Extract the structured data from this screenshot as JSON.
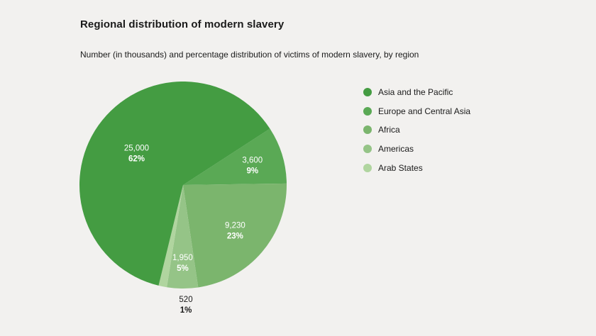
{
  "title": "Regional distribution of modern slavery",
  "subtitle": "Number (in thousands) and percentage distribution of victims of modern slavery, by region",
  "chart_data": {
    "type": "pie",
    "title": "Regional distribution of modern slavery",
    "subtitle": "Number (in thousands) and percentage distribution of victims of modern slavery, by region",
    "legend_position": "right",
    "slices": [
      {
        "name": "Asia and the Pacific",
        "value": 25000,
        "value_label": "25,000",
        "percent_label": "62%",
        "color": "#449c42"
      },
      {
        "name": "Europe and Central Asia",
        "value": 3600,
        "value_label": "3,600",
        "percent_label": "9%",
        "color": "#5aa955"
      },
      {
        "name": "Africa",
        "value": 9230,
        "value_label": "9,230",
        "percent_label": "23%",
        "color": "#7bb56d"
      },
      {
        "name": "Americas",
        "value": 1950,
        "value_label": "1,950",
        "percent_label": "5%",
        "color": "#95c487"
      },
      {
        "name": "Arab States",
        "value": 520,
        "value_label": "520",
        "percent_label": "1%",
        "color": "#b0d59f"
      }
    ]
  }
}
